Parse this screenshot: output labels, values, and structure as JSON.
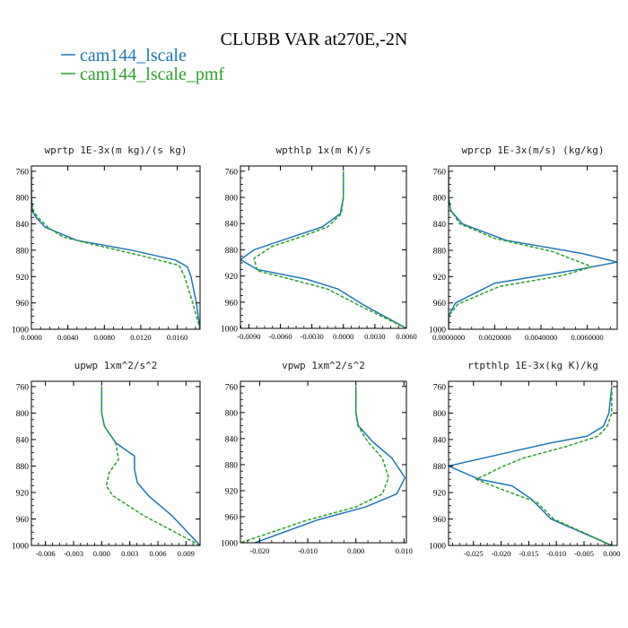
{
  "figure": {
    "title": "CLUBB VAR at270E,-2N",
    "legend": [
      {
        "label": "cam144_lscale",
        "color": "#1f77b4"
      },
      {
        "label": "cam144_lscale_pmf",
        "color": "#2ca02c"
      }
    ]
  },
  "chart_data": [
    {
      "type": "line",
      "title": "wprtp  1E-3x(m kg)/(s kg)",
      "xlim": [
        0.0,
        0.0185
      ],
      "ylim": [
        1000,
        752
      ],
      "xticks": [
        0.0,
        0.004,
        0.008,
        0.012,
        0.016
      ],
      "xticklabels": [
        "0.0000",
        "0.0040",
        "0.0080",
        "0.0120",
        "0.0160"
      ],
      "yticks": [
        760,
        800,
        840,
        880,
        920,
        960,
        1000
      ],
      "yticklabels": [
        "760",
        "800",
        "840",
        "880",
        "920",
        "960",
        "1000"
      ],
      "series": [
        {
          "name": "cam144_lscale",
          "color": "#1f77b4",
          "dash": false,
          "x": [
            0.0,
            0.0,
            0.0001,
            0.0005,
            0.0015,
            0.005,
            0.011,
            0.0158,
            0.0171,
            0.0175,
            0.0181,
            0.0185
          ],
          "y": [
            760,
            800,
            820,
            830,
            845,
            865,
            880,
            895,
            905,
            920,
            960,
            1000
          ]
        },
        {
          "name": "cam144_lscale_pmf",
          "color": "#2ca02c",
          "dash": true,
          "x": [
            0.0,
            0.0,
            0.0002,
            0.0007,
            0.0018,
            0.0035,
            0.007,
            0.012,
            0.0162,
            0.0168,
            0.0177,
            0.0185
          ],
          "y": [
            760,
            800,
            820,
            830,
            845,
            860,
            872,
            888,
            903,
            920,
            960,
            1000
          ]
        }
      ]
    },
    {
      "type": "line",
      "title": "wpthlp  1x(m K)/s",
      "xlim": [
        -0.0098,
        0.006
      ],
      "ylim": [
        1000,
        752
      ],
      "xticks": [
        -0.009,
        -0.006,
        -0.003,
        0.0,
        0.003,
        0.006
      ],
      "xticklabels": [
        "-0.0090",
        "-0.0060",
        "-0.0030",
        "0.0000",
        "0.0030",
        "0.0060"
      ],
      "yticks": [
        760,
        800,
        840,
        880,
        920,
        960,
        1000
      ],
      "yticklabels": [
        "760",
        "800",
        "840",
        "880",
        "920",
        "960",
        "1000"
      ],
      "series": [
        {
          "name": "cam144_lscale",
          "color": "#1f77b4",
          "dash": false,
          "x": [
            0.0,
            0.0,
            -0.0003,
            -0.002,
            -0.0048,
            -0.0085,
            -0.0098,
            -0.0082,
            -0.0035,
            -0.0005,
            0.002,
            0.006
          ],
          "y": [
            760,
            800,
            825,
            845,
            860,
            880,
            895,
            910,
            925,
            940,
            965,
            1000
          ]
        },
        {
          "name": "cam144_lscale_pmf",
          "color": "#2ca02c",
          "dash": true,
          "x": [
            0.0,
            0.0,
            -0.0002,
            -0.0015,
            -0.004,
            -0.0068,
            -0.0085,
            -0.0082,
            -0.005,
            -0.0015,
            0.0015,
            0.006
          ],
          "y": [
            760,
            800,
            825,
            845,
            860,
            875,
            893,
            912,
            925,
            940,
            965,
            1000
          ]
        }
      ]
    },
    {
      "type": "line",
      "title": "wprcp  1E-3x(m/s) (kg/kg)",
      "xlim": [
        0.0,
        0.0073
      ],
      "ylim": [
        1000,
        752
      ],
      "xticks": [
        0.0,
        0.002,
        0.004,
        0.006
      ],
      "xticklabels": [
        "0.0000000",
        "0.0020000",
        "0.0040000",
        "0.0060000"
      ],
      "yticks": [
        760,
        800,
        840,
        880,
        920,
        960,
        1000
      ],
      "yticklabels": [
        "760",
        "800",
        "840",
        "880",
        "920",
        "960",
        "1000"
      ],
      "series": [
        {
          "name": "cam144_lscale",
          "color": "#1f77b4",
          "dash": false,
          "x": [
            0.0,
            0.0,
            0.0001,
            0.0006,
            0.0025,
            0.0058,
            0.0073,
            0.0055,
            0.002,
            0.0003,
            0.0,
            0.0
          ],
          "y": [
            760,
            800,
            820,
            840,
            865,
            885,
            898,
            910,
            930,
            960,
            980,
            1000
          ]
        },
        {
          "name": "cam144_lscale_pmf",
          "color": "#2ca02c",
          "dash": true,
          "x": [
            0.0,
            0.0,
            0.0001,
            0.0005,
            0.002,
            0.0045,
            0.0062,
            0.005,
            0.0022,
            0.0004,
            0.0,
            0.0
          ],
          "y": [
            760,
            800,
            820,
            840,
            862,
            882,
            905,
            918,
            935,
            962,
            980,
            1000
          ]
        }
      ]
    },
    {
      "type": "line",
      "title": "upwp  1xm^2/s^2",
      "xlim": [
        -0.0075,
        0.0105
      ],
      "ylim": [
        1000,
        752
      ],
      "xticks": [
        -0.006,
        -0.003,
        0.0,
        0.003,
        0.006,
        0.009
      ],
      "xticklabels": [
        "-0.006",
        "-0.003",
        "0.000",
        "0.003",
        "0.006",
        "0.009"
      ],
      "yticks": [
        760,
        800,
        840,
        880,
        920,
        960,
        1000
      ],
      "yticklabels": [
        "760",
        "800",
        "840",
        "880",
        "920",
        "960",
        "1000"
      ],
      "series": [
        {
          "name": "cam144_lscale",
          "color": "#1f77b4",
          "dash": false,
          "x": [
            0.0,
            0.0,
            0.0003,
            0.0015,
            0.0035,
            0.0035,
            0.0038,
            0.005,
            0.0075,
            0.0105
          ],
          "y": [
            760,
            800,
            820,
            845,
            865,
            885,
            905,
            925,
            955,
            1000
          ]
        },
        {
          "name": "cam144_lscale_pmf",
          "color": "#2ca02c",
          "dash": true,
          "x": [
            0.0,
            0.0,
            0.0003,
            0.0015,
            0.0018,
            0.0008,
            0.0005,
            0.0012,
            0.0045,
            0.0105
          ],
          "y": [
            760,
            800,
            820,
            845,
            870,
            890,
            910,
            925,
            955,
            1000
          ]
        }
      ]
    },
    {
      "type": "line",
      "title": "vpwp  1xm^2/s^2",
      "xlim": [
        -0.024,
        0.0105
      ],
      "ylim": [
        1000,
        752
      ],
      "xticks": [
        -0.02,
        -0.01,
        0.0,
        0.01
      ],
      "xticklabels": [
        "-0.020",
        "-0.010",
        "0.000",
        "0.010"
      ],
      "yticks": [
        760,
        800,
        840,
        880,
        920,
        960,
        1000
      ],
      "yticklabels": [
        "760",
        "800",
        "840",
        "880",
        "920",
        "960",
        "1000"
      ],
      "series": [
        {
          "name": "cam144_lscale",
          "color": "#1f77b4",
          "dash": false,
          "x": [
            0.0,
            0.0,
            0.0005,
            0.0035,
            0.0075,
            0.0102,
            0.0085,
            0.002,
            -0.008,
            -0.021
          ],
          "y": [
            760,
            800,
            820,
            845,
            870,
            900,
            925,
            945,
            965,
            1000
          ]
        },
        {
          "name": "cam144_lscale_pmf",
          "color": "#2ca02c",
          "dash": true,
          "x": [
            0.0,
            0.0,
            0.0004,
            0.0025,
            0.0055,
            0.0068,
            0.0055,
            0.0,
            -0.01,
            -0.024
          ],
          "y": [
            760,
            800,
            820,
            845,
            870,
            900,
            925,
            945,
            965,
            1000
          ]
        }
      ]
    },
    {
      "type": "line",
      "title": "rtpthlp  1E-3x(kg K)/kg",
      "xlim": [
        -0.0295,
        0.001
      ],
      "ylim": [
        1000,
        752
      ],
      "xticks": [
        -0.025,
        -0.02,
        -0.015,
        -0.01,
        -0.005,
        0.0
      ],
      "xticklabels": [
        "-0.025",
        "-0.020",
        "-0.015",
        "-0.010",
        "-0.005",
        "0.000"
      ],
      "yticks": [
        760,
        800,
        840,
        880,
        920,
        960,
        1000
      ],
      "yticklabels": [
        "760",
        "800",
        "840",
        "880",
        "920",
        "960",
        "1000"
      ],
      "series": [
        {
          "name": "cam144_lscale",
          "color": "#1f77b4",
          "dash": false,
          "x": [
            0.0,
            -0.0005,
            -0.0015,
            -0.0045,
            -0.011,
            -0.019,
            -0.0295,
            -0.024,
            -0.018,
            -0.0145,
            -0.011,
            0.0
          ],
          "y": [
            760,
            800,
            820,
            835,
            845,
            860,
            880,
            900,
            910,
            930,
            960,
            1000
          ]
        },
        {
          "name": "cam144_lscale_pmf",
          "color": "#2ca02c",
          "dash": true,
          "x": [
            0.0,
            0.0,
            -0.0008,
            -0.0025,
            -0.008,
            -0.016,
            -0.0195,
            -0.0245,
            -0.02,
            -0.0135,
            -0.0105,
            0.0
          ],
          "y": [
            760,
            800,
            820,
            835,
            850,
            868,
            880,
            900,
            915,
            935,
            960,
            1000
          ]
        }
      ]
    }
  ]
}
